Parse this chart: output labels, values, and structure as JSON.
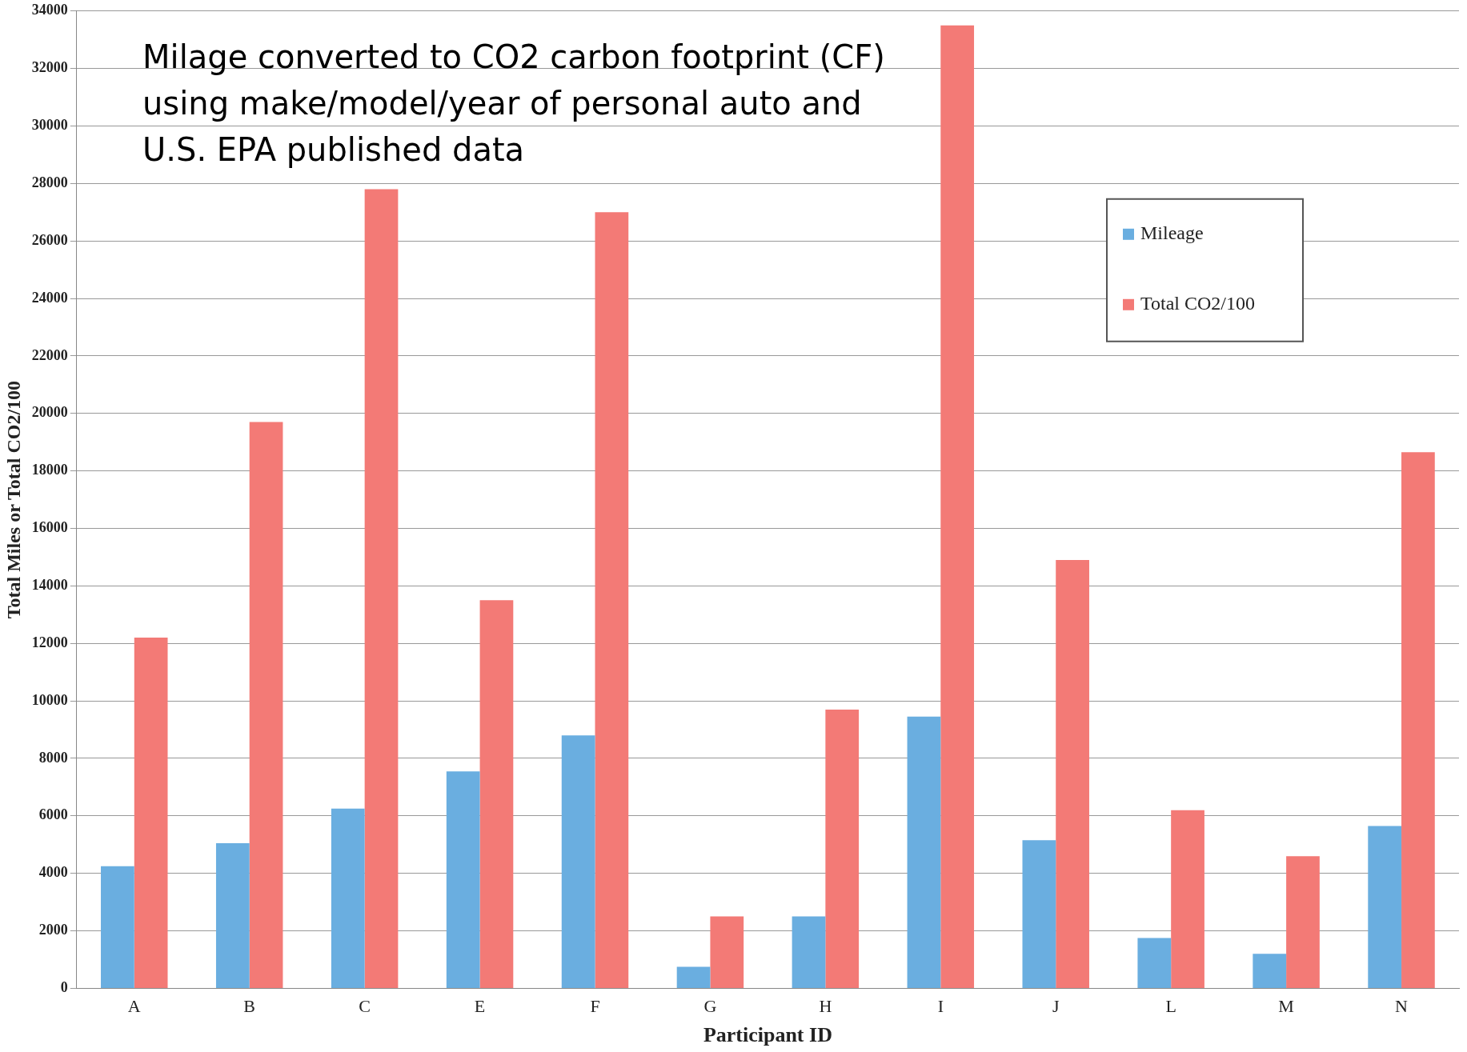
{
  "chart_data": {
    "type": "bar",
    "xlabel": "Participant ID",
    "ylabel": "Total Miles or Total CO2/100",
    "categories": [
      "A",
      "B",
      "C",
      "E",
      "F",
      "G",
      "H",
      "I",
      "J",
      "L",
      "M",
      "N"
    ],
    "series": [
      {
        "name": "Mileage",
        "color": "#6aaee0",
        "values": [
          4250,
          5050,
          6250,
          7550,
          8800,
          750,
          2500,
          9450,
          5150,
          1750,
          1200,
          5650
        ]
      },
      {
        "name": "Total CO2/100",
        "color": "#f37a76",
        "values": [
          12200,
          19700,
          27800,
          13500,
          27000,
          2500,
          9700,
          33500,
          14900,
          6200,
          4600,
          18650
        ]
      }
    ],
    "ylim": [
      0,
      34000
    ],
    "yticks": [
      0,
      2000,
      4000,
      6000,
      8000,
      10000,
      12000,
      14000,
      16000,
      18000,
      20000,
      22000,
      24000,
      26000,
      28000,
      30000,
      32000,
      34000
    ],
    "grid": "y",
    "legend": "top right",
    "annotations": [
      "Milage converted to CO2 carbon footprint (CF) using make/model/year of personal auto and U.S. EPA published data"
    ]
  }
}
